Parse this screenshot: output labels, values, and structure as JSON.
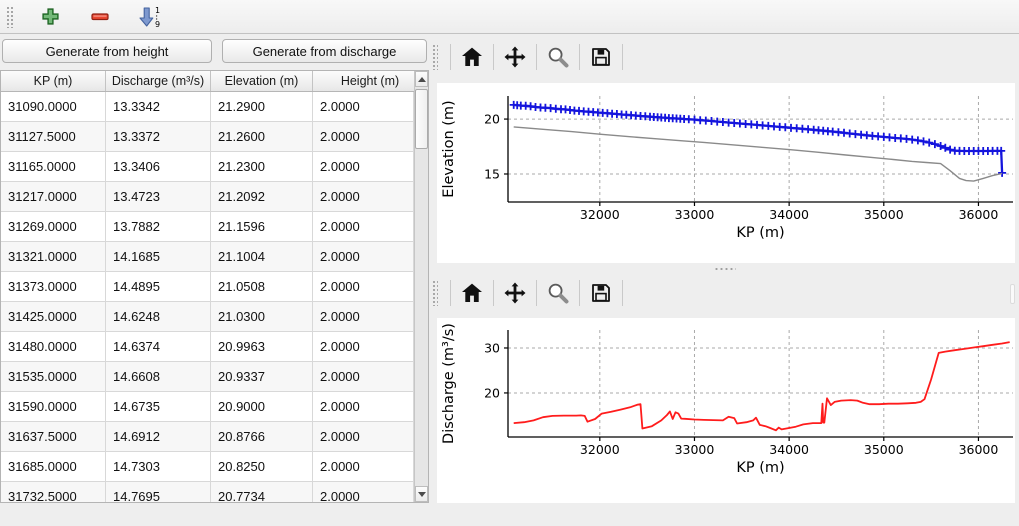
{
  "toolbar": {
    "buttons": [
      {
        "name": "add-row",
        "icon": "plus-icon"
      },
      {
        "name": "remove-row",
        "icon": "minus-icon"
      },
      {
        "name": "sort-rows",
        "icon": "sort-ascending-icon",
        "sort_top": "1",
        "sort_bottom": "9"
      }
    ]
  },
  "actions": {
    "generate_from_height": "Generate from height",
    "generate_from_discharge": "Generate from discharge"
  },
  "table": {
    "columns": [
      "KP (m)",
      "Discharge (m³/s)",
      "Elevation (m)",
      "Height (m)"
    ],
    "rows": [
      [
        "31090.0000",
        "13.3342",
        "21.2900",
        "2.0000"
      ],
      [
        "31127.5000",
        "13.3372",
        "21.2600",
        "2.0000"
      ],
      [
        "31165.0000",
        "13.3406",
        "21.2300",
        "2.0000"
      ],
      [
        "31217.0000",
        "13.4723",
        "21.2092",
        "2.0000"
      ],
      [
        "31269.0000",
        "13.7882",
        "21.1596",
        "2.0000"
      ],
      [
        "31321.0000",
        "14.1685",
        "21.1004",
        "2.0000"
      ],
      [
        "31373.0000",
        "14.4895",
        "21.0508",
        "2.0000"
      ],
      [
        "31425.0000",
        "14.6248",
        "21.0300",
        "2.0000"
      ],
      [
        "31480.0000",
        "14.6374",
        "20.9963",
        "2.0000"
      ],
      [
        "31535.0000",
        "14.6608",
        "20.9337",
        "2.0000"
      ],
      [
        "31590.0000",
        "14.6735",
        "20.9000",
        "2.0000"
      ],
      [
        "31637.5000",
        "14.6912",
        "20.8766",
        "2.0000"
      ],
      [
        "31685.0000",
        "14.7303",
        "20.8250",
        "2.0000"
      ],
      [
        "31732.5000",
        "14.7695",
        "20.7734",
        "2.0000"
      ]
    ]
  },
  "chart_toolbar_icons": [
    "home-icon",
    "pan-icon",
    "zoom-icon",
    "save-icon"
  ],
  "colors": {
    "elevation_line": "#1414dd",
    "bed_line": "#8a8a8a",
    "discharge_line": "#ff1c1c",
    "grid": "#a9a9a9"
  },
  "chart_data": [
    {
      "type": "line",
      "title": "",
      "xlabel": "KP (m)",
      "ylabel": "Elevation (m)",
      "xlim": [
        31030,
        36365
      ],
      "ylim": [
        12.45,
        22.1
      ],
      "xticks": [
        32000,
        33000,
        34000,
        35000,
        36000
      ],
      "yticks": [
        15,
        20
      ],
      "grid": true,
      "legend": "none",
      "series": [
        {
          "name": "elevation",
          "color": "#1414dd",
          "width": 2.3,
          "marker": "+",
          "x": [
            31090,
            31127,
            31165,
            31217,
            31269,
            31321,
            31373,
            31425,
            31480,
            31535,
            31590,
            31637,
            31685,
            31732,
            31780,
            31830,
            31880,
            31930,
            31980,
            32030,
            32080,
            32130,
            32180,
            32230,
            32280,
            32330,
            32380,
            32430,
            32480,
            32530,
            32570,
            32610,
            32650,
            32690,
            32730,
            32770,
            32810,
            32850,
            32890,
            32940,
            33000,
            33060,
            33120,
            33180,
            33240,
            33300,
            33360,
            33420,
            33480,
            33540,
            33600,
            33660,
            33720,
            33780,
            33840,
            33900,
            33960,
            34020,
            34080,
            34140,
            34200,
            34260,
            34310,
            34360,
            34410,
            34460,
            34520,
            34580,
            34640,
            34700,
            34760,
            34820,
            34880,
            34940,
            35000,
            35060,
            35120,
            35180,
            35240,
            35300,
            35360,
            35420,
            35480,
            35540,
            35600,
            35650,
            35700,
            35750,
            35800,
            35850,
            35900,
            35950,
            36000,
            36050,
            36100,
            36150,
            36200,
            36240,
            36250
          ],
          "y": [
            21.29,
            21.26,
            21.23,
            21.2092,
            21.1596,
            21.1004,
            21.0508,
            21.03,
            20.9963,
            20.9337,
            20.9,
            20.8766,
            20.825,
            20.7734,
            20.74,
            20.7,
            20.67,
            20.63,
            20.6,
            20.56,
            20.53,
            20.49,
            20.46,
            20.42,
            20.39,
            20.35,
            20.32,
            20.28,
            20.25,
            20.22,
            20.19,
            20.17,
            20.14,
            20.12,
            20.09,
            20.07,
            20.05,
            20.03,
            20.01,
            19.98,
            19.95,
            19.9,
            19.86,
            19.82,
            19.77,
            19.73,
            19.68,
            19.64,
            19.6,
            19.55,
            19.51,
            19.47,
            19.42,
            19.38,
            19.33,
            19.29,
            19.25,
            19.2,
            19.16,
            19.11,
            19.07,
            19.02,
            18.98,
            18.94,
            18.9,
            18.86,
            18.8,
            18.75,
            18.69,
            18.63,
            18.58,
            18.52,
            18.47,
            18.42,
            18.38,
            18.33,
            18.28,
            18.24,
            18.19,
            18.13,
            18.06,
            17.97,
            17.86,
            17.72,
            17.55,
            17.38,
            17.22,
            17.12,
            17.1,
            17.09,
            17.09,
            17.09,
            17.09,
            17.09,
            17.09,
            17.1,
            17.1,
            17.1,
            15.1
          ]
        },
        {
          "name": "bed",
          "color": "#8a8a8a",
          "width": 1.4,
          "marker": null,
          "x": [
            31090,
            31400,
            31700,
            32000,
            32300,
            32600,
            32870,
            33100,
            33400,
            33700,
            34000,
            34300,
            34600,
            34900,
            35100,
            35300,
            35450,
            35600,
            35700,
            35800,
            35870,
            35950,
            36050,
            36150,
            36250
          ],
          "y": [
            19.29,
            19.07,
            18.86,
            18.62,
            18.4,
            18.2,
            18.02,
            17.88,
            17.66,
            17.44,
            17.22,
            16.98,
            16.73,
            16.48,
            16.32,
            16.15,
            16.05,
            15.95,
            15.3,
            14.6,
            14.4,
            14.35,
            14.6,
            14.85,
            15.05
          ]
        }
      ]
    },
    {
      "type": "line",
      "title": "",
      "xlabel": "KP (m)",
      "ylabel": "Discharge (m³/s)",
      "xlim": [
        31030,
        36365
      ],
      "ylim": [
        10.2,
        34.0
      ],
      "xticks": [
        32000,
        33000,
        34000,
        35000,
        36000
      ],
      "yticks": [
        20,
        30
      ],
      "grid": true,
      "legend": "none",
      "series": [
        {
          "name": "discharge",
          "color": "#ff1c1c",
          "width": 1.8,
          "marker": null,
          "x": [
            31090,
            31200,
            31300,
            31400,
            31500,
            31620,
            31750,
            31800,
            31840,
            31870,
            31950,
            32020,
            32120,
            32220,
            32320,
            32400,
            32430,
            32450,
            32550,
            32650,
            32710,
            32740,
            32770,
            32800,
            32830,
            32860,
            32900,
            33000,
            33100,
            33200,
            33300,
            33360,
            33420,
            33450,
            33550,
            33620,
            33650,
            33690,
            33750,
            33800,
            33860,
            33890,
            33920,
            34000,
            34070,
            34150,
            34250,
            34340,
            34352,
            34360,
            34372,
            34400,
            34440,
            34480,
            34550,
            34650,
            34720,
            34780,
            34850,
            34950,
            35050,
            35150,
            35250,
            35340,
            35390,
            35430,
            35500,
            35580,
            35650,
            35750,
            35850,
            35950,
            36050,
            36150,
            36250,
            36330
          ],
          "y": [
            13.3,
            13.5,
            13.9,
            14.6,
            14.9,
            14.95,
            14.95,
            15.0,
            14.9,
            13.6,
            14.2,
            15.4,
            15.8,
            16.3,
            16.8,
            17.4,
            17.5,
            12.1,
            12.6,
            13.9,
            15.1,
            15.9,
            14.2,
            15.7,
            15.4,
            14.3,
            14.25,
            14.1,
            14.0,
            13.95,
            13.9,
            14.7,
            14.4,
            13.2,
            13.5,
            13.9,
            14.5,
            12.9,
            12.6,
            12.2,
            11.7,
            12.3,
            11.9,
            12.2,
            12.5,
            13.0,
            13.3,
            13.3,
            17.6,
            13.4,
            13.4,
            18.8,
            17.3,
            18.0,
            18.3,
            18.4,
            18.3,
            17.8,
            17.5,
            17.5,
            17.6,
            17.6,
            17.7,
            17.8,
            18.0,
            18.6,
            23.0,
            28.9,
            29.2,
            29.5,
            29.8,
            30.1,
            30.4,
            30.7,
            31.0,
            31.3
          ]
        }
      ]
    }
  ]
}
